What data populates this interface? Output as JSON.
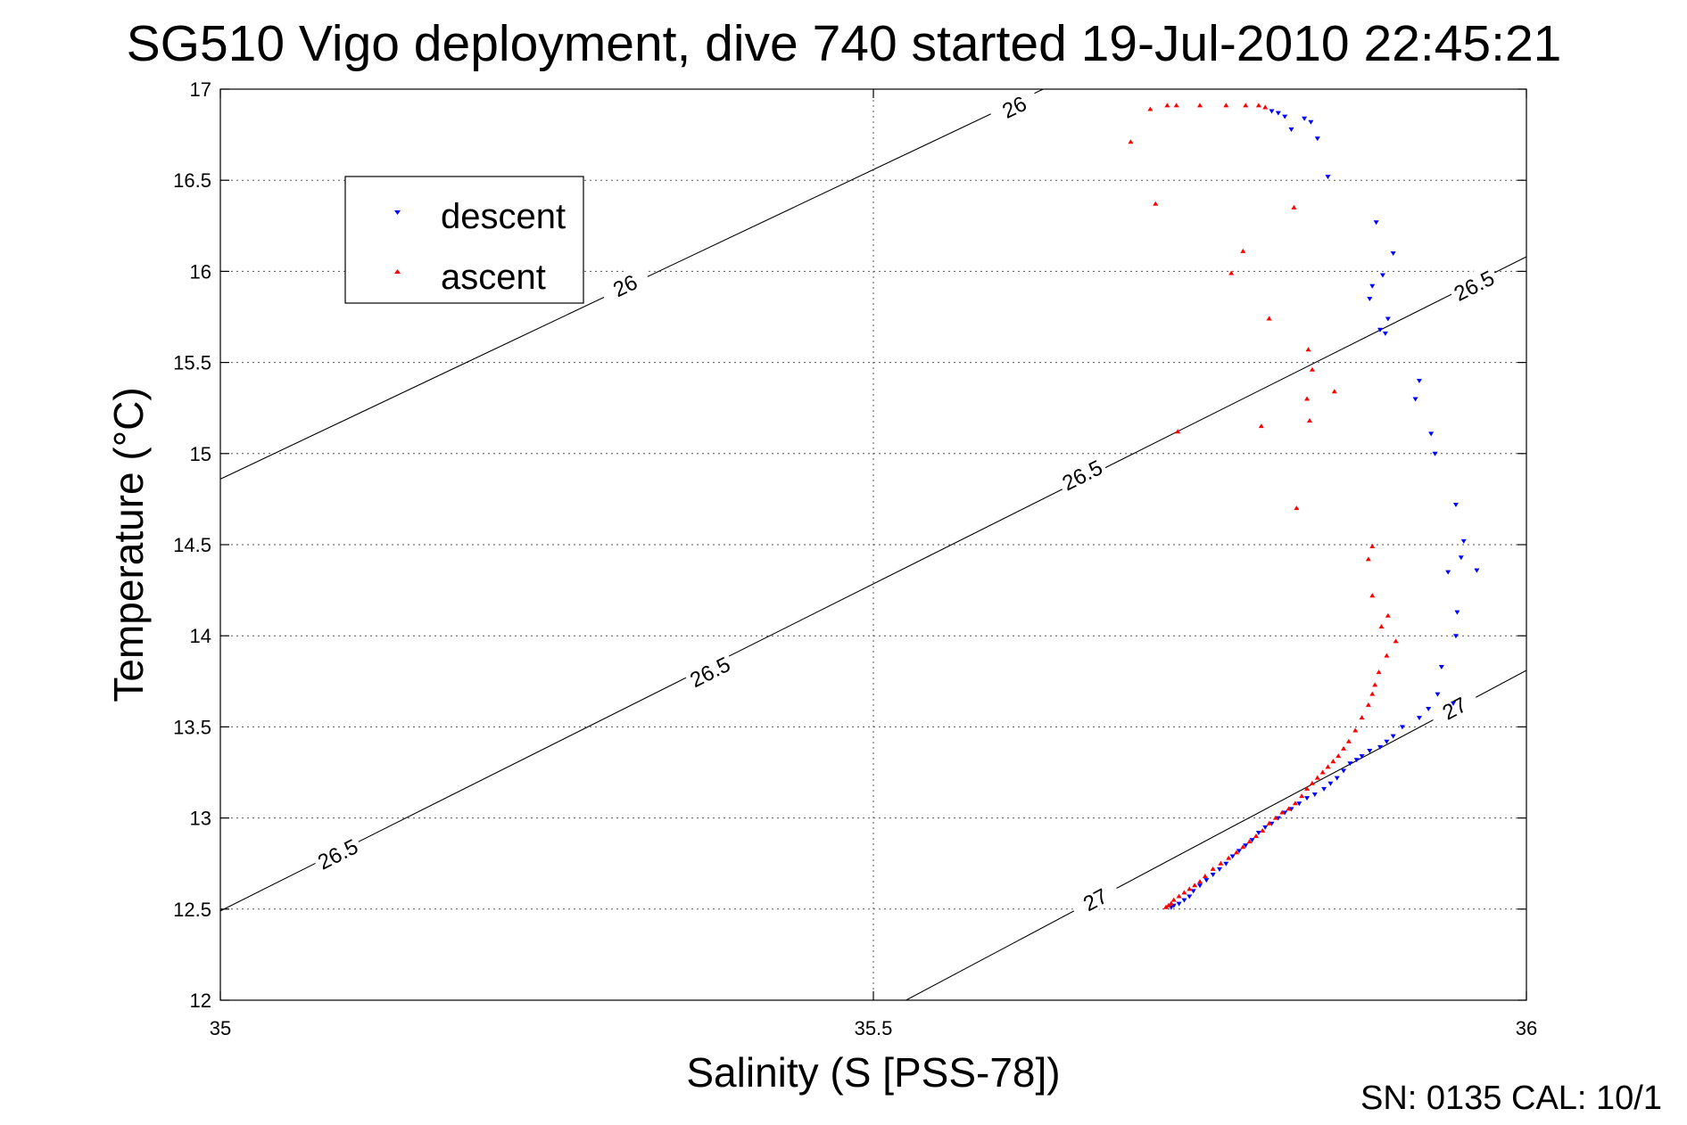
{
  "chart_data": {
    "type": "scatter",
    "title": "SG510 Vigo deployment, dive 740 started 19-Jul-2010 22:45:21",
    "xlabel": "Salinity (S [PSS-78])",
    "ylabel": "Temperature (°C)",
    "xlim": [
      35,
      36
    ],
    "ylim": [
      12,
      17
    ],
    "x_ticks": [
      35,
      35.5,
      36
    ],
    "x_tick_labels": [
      "35",
      "35.5",
      "36"
    ],
    "y_ticks": [
      12,
      12.5,
      13,
      13.5,
      14,
      14.5,
      15,
      15.5,
      16,
      16.5,
      17
    ],
    "y_tick_labels": [
      "12",
      "12.5",
      "13",
      "13.5",
      "14",
      "14.5",
      "15",
      "15.5",
      "16",
      "16.5",
      "17"
    ],
    "grid": true,
    "legend_placement": "top-left",
    "footer": "SN: 0135  CAL: 10/1",
    "contours": [
      {
        "level": "26",
        "points": [
          [
            35.0,
            14.86
          ],
          [
            35.63,
            17.0
          ]
        ],
        "labels": [
          [
            35.608,
            16.9
          ],
          [
            35.31,
            15.92
          ]
        ]
      },
      {
        "level": "26.5",
        "points": [
          [
            35.0,
            12.49
          ],
          [
            36.0,
            16.08
          ]
        ],
        "labels": [
          [
            35.09,
            12.8
          ],
          [
            35.375,
            13.8
          ],
          [
            35.66,
            14.88
          ],
          [
            35.96,
            15.92
          ]
        ]
      },
      {
        "level": "27",
        "points": [
          [
            35.525,
            12.0
          ],
          [
            36.0,
            13.81
          ]
        ],
        "labels": [
          [
            35.67,
            12.55
          ],
          [
            35.945,
            13.6
          ]
        ]
      }
    ],
    "series": [
      {
        "name": "descent",
        "color": "#0000ff",
        "marker": "triangle-down",
        "points": [
          [
            35.805,
            16.88
          ],
          [
            35.81,
            16.87
          ],
          [
            35.815,
            16.85
          ],
          [
            35.83,
            16.84
          ],
          [
            35.835,
            16.82
          ],
          [
            35.84,
            16.73
          ],
          [
            35.82,
            16.78
          ],
          [
            35.848,
            16.52
          ],
          [
            35.885,
            16.27
          ],
          [
            35.898,
            16.1
          ],
          [
            35.89,
            15.98
          ],
          [
            35.882,
            15.92
          ],
          [
            35.88,
            15.85
          ],
          [
            35.894,
            15.74
          ],
          [
            35.888,
            15.68
          ],
          [
            35.892,
            15.66
          ],
          [
            35.918,
            15.4
          ],
          [
            35.915,
            15.3
          ],
          [
            35.927,
            15.11
          ],
          [
            35.93,
            15.0
          ],
          [
            35.946,
            14.72
          ],
          [
            35.952,
            14.52
          ],
          [
            35.95,
            14.43
          ],
          [
            35.94,
            14.35
          ],
          [
            35.947,
            14.13
          ],
          [
            35.962,
            14.36
          ],
          [
            35.946,
            14.0
          ],
          [
            35.935,
            13.83
          ],
          [
            35.944,
            13.63
          ],
          [
            35.932,
            13.68
          ],
          [
            35.925,
            13.6
          ],
          [
            35.918,
            13.55
          ],
          [
            35.905,
            13.5
          ],
          [
            35.898,
            13.45
          ],
          [
            35.893,
            13.42
          ],
          [
            35.888,
            13.39
          ],
          [
            35.88,
            13.37
          ],
          [
            35.874,
            13.34
          ],
          [
            35.87,
            13.32
          ],
          [
            35.865,
            13.3
          ],
          [
            35.86,
            13.26
          ],
          [
            35.855,
            13.22
          ],
          [
            35.85,
            13.19
          ],
          [
            35.845,
            13.16
          ],
          [
            35.838,
            13.13
          ],
          [
            35.832,
            13.11
          ],
          [
            35.826,
            13.08
          ],
          [
            35.82,
            13.05
          ],
          [
            35.815,
            13.03
          ],
          [
            35.81,
            13.0
          ],
          [
            35.805,
            12.97
          ],
          [
            35.8,
            12.95
          ],
          [
            35.795,
            12.92
          ],
          [
            35.79,
            12.88
          ],
          [
            35.785,
            12.85
          ],
          [
            35.78,
            12.82
          ],
          [
            35.775,
            12.79
          ],
          [
            35.77,
            12.75
          ],
          [
            35.765,
            12.72
          ],
          [
            35.76,
            12.69
          ],
          [
            35.755,
            12.66
          ],
          [
            35.75,
            12.63
          ],
          [
            35.745,
            12.6
          ],
          [
            35.742,
            12.57
          ],
          [
            35.738,
            12.55
          ],
          [
            35.734,
            12.53
          ],
          [
            35.73,
            12.52
          ],
          [
            35.728,
            12.51
          ]
        ]
      },
      {
        "name": "ascent",
        "color": "#ff0000",
        "marker": "triangle-up",
        "points": [
          [
            35.725,
            16.91
          ],
          [
            35.77,
            16.91
          ],
          [
            35.785,
            16.91
          ],
          [
            35.795,
            16.91
          ],
          [
            35.8,
            16.9
          ],
          [
            35.712,
            16.89
          ],
          [
            35.732,
            16.91
          ],
          [
            35.75,
            16.91
          ],
          [
            35.697,
            16.71
          ],
          [
            35.716,
            16.37
          ],
          [
            35.822,
            16.35
          ],
          [
            35.783,
            16.11
          ],
          [
            35.774,
            15.99
          ],
          [
            35.803,
            15.74
          ],
          [
            35.833,
            15.57
          ],
          [
            35.836,
            15.46
          ],
          [
            35.853,
            15.34
          ],
          [
            35.832,
            15.3
          ],
          [
            35.834,
            15.18
          ],
          [
            35.733,
            15.12
          ],
          [
            35.797,
            15.15
          ],
          [
            35.824,
            14.7
          ],
          [
            35.882,
            14.49
          ],
          [
            35.879,
            14.42
          ],
          [
            35.882,
            14.22
          ],
          [
            35.894,
            14.11
          ],
          [
            35.889,
            14.05
          ],
          [
            35.9,
            13.97
          ],
          [
            35.893,
            13.89
          ],
          [
            35.887,
            13.8
          ],
          [
            35.884,
            13.73
          ],
          [
            35.882,
            13.68
          ],
          [
            35.879,
            13.62
          ],
          [
            35.874,
            13.55
          ],
          [
            35.869,
            13.48
          ],
          [
            35.864,
            13.42
          ],
          [
            35.86,
            13.38
          ],
          [
            35.856,
            13.34
          ],
          [
            35.852,
            13.31
          ],
          [
            35.848,
            13.28
          ],
          [
            35.844,
            13.25
          ],
          [
            35.84,
            13.22
          ],
          [
            35.836,
            13.19
          ],
          [
            35.832,
            13.16
          ],
          [
            35.828,
            13.12
          ],
          [
            35.823,
            13.08
          ],
          [
            35.818,
            13.05
          ],
          [
            35.813,
            13.03
          ],
          [
            35.808,
            13.0
          ],
          [
            35.803,
            12.97
          ],
          [
            35.798,
            12.93
          ],
          [
            35.793,
            12.9
          ],
          [
            35.788,
            12.87
          ],
          [
            35.783,
            12.84
          ],
          [
            35.778,
            12.81
          ],
          [
            35.772,
            12.78
          ],
          [
            35.766,
            12.75
          ],
          [
            35.76,
            12.72
          ],
          [
            35.754,
            12.68
          ],
          [
            35.75,
            12.65
          ],
          [
            35.746,
            12.63
          ],
          [
            35.742,
            12.61
          ],
          [
            35.738,
            12.59
          ],
          [
            35.734,
            12.57
          ],
          [
            35.73,
            12.55
          ],
          [
            35.728,
            12.53
          ],
          [
            35.726,
            12.52
          ],
          [
            35.724,
            12.51
          ]
        ]
      }
    ]
  }
}
